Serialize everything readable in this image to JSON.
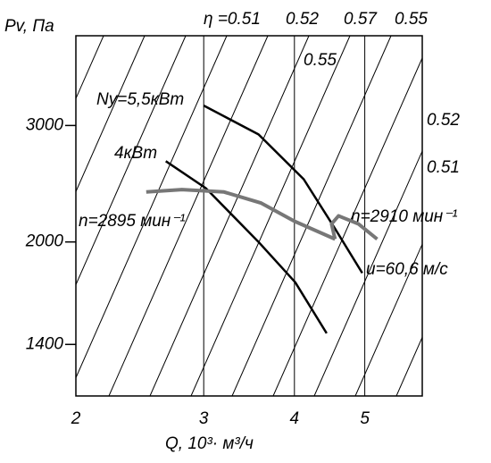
{
  "chart_data": {
    "type": "line",
    "x_label": "Q, 10³· м³/ч",
    "y_label": "Pv, Па",
    "xlim": [
      2,
      6
    ],
    "ylim": [
      1170,
      4100
    ],
    "xticks": [
      2,
      3,
      4,
      5
    ],
    "yticks": [
      1400,
      2000,
      3000
    ],
    "log_x": true,
    "log_y": true,
    "grid": true,
    "series": [
      {
        "name": "Ny=5,5кВт",
        "color": "#000000",
        "x": [
          3.0,
          3.57,
          4.12,
          4.55,
          4.96
        ],
        "values": [
          3215,
          2908,
          2488,
          2095,
          1795
        ]
      },
      {
        "name": "4кВт",
        "color": "#000000",
        "x": [
          2.66,
          3.02,
          3.57,
          4.01,
          4.43
        ],
        "values": [
          2650,
          2412,
          2000,
          1738,
          1455
        ]
      },
      {
        "name": "n=2895 мин⁻¹",
        "color": "#777777",
        "x": [
          2.5,
          2.8,
          3.2,
          3.6,
          4.0,
          4.55
        ],
        "values": [
          2380,
          2400,
          2380,
          2290,
          2150,
          2020
        ]
      },
      {
        "name": "n=2910 мин⁻¹",
        "color": "#777777",
        "x": [
          4.55,
          4.5,
          4.6,
          4.9,
          5.2
        ],
        "values": [
          2020,
          2130,
          2190,
          2130,
          2020
        ]
      }
    ],
    "annotations": [
      "η =0.51",
      "0.52",
      "0.57",
      "0.55",
      "0.55",
      "0.52",
      "0.51",
      "u=60,6 м/с"
    ]
  }
}
